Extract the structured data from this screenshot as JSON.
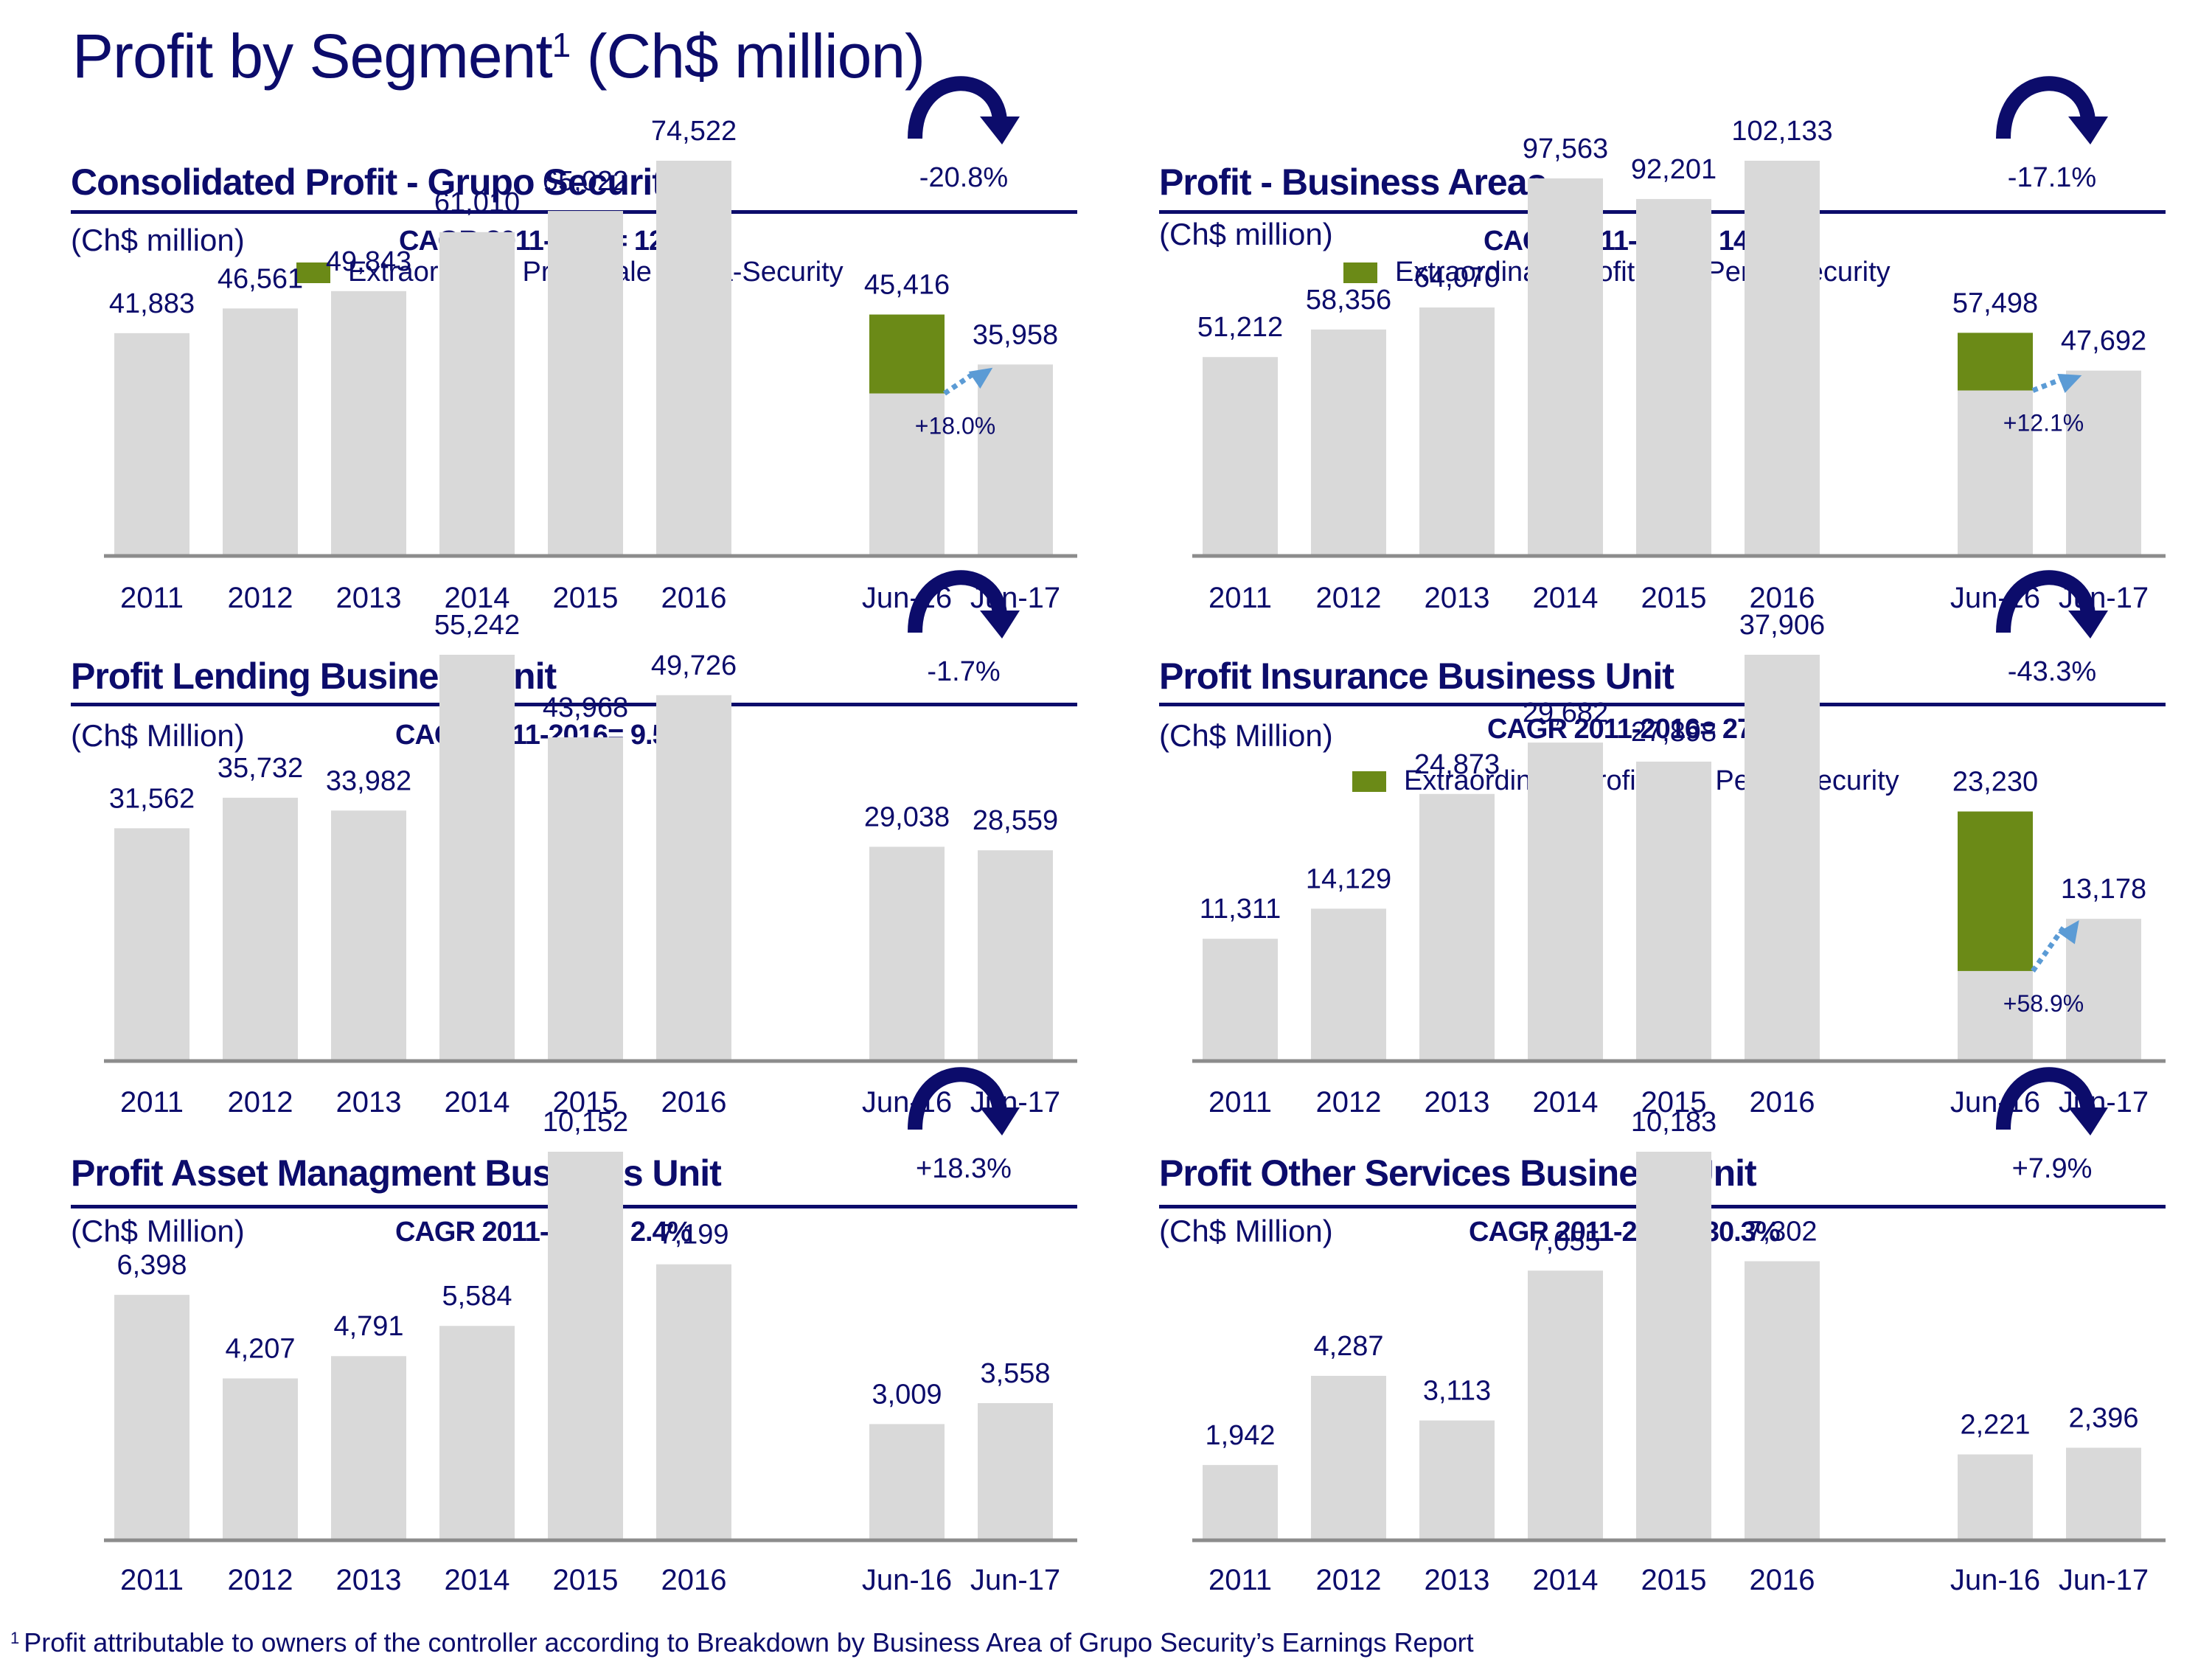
{
  "title": {
    "main": "Profit by Segment",
    "superscript": "1",
    "suffix": " (Ch$ million)"
  },
  "footnote": {
    "marker": "1",
    "text": "Profit attributable to owners of the controller according to Breakdown by Business Area of Grupo Security’s Earnings Report"
  },
  "colors": {
    "text": "#0c0c6b",
    "bar": "#d9d9d9",
    "extraordinary": "#6b8a17",
    "axis": "#8c8c8c",
    "growth_arrow": "#5b9bd5",
    "change_arrow": "#0c0c6b"
  },
  "legend_label": "Extraordinary Profit Sale Penta-Security",
  "chart_data": [
    {
      "id": "consolidated",
      "type": "bar",
      "title": "Consolidated Profit - Grupo Security",
      "unit": "(Ch$ million)",
      "cagr": "CAGR 2011-2016= 12.2%",
      "has_legend": true,
      "categories": [
        "2011",
        "2012",
        "2013",
        "2014",
        "2015",
        "2016",
        "Jun-16",
        "Jun-17"
      ],
      "values": [
        41883,
        46561,
        49843,
        61010,
        65022,
        74522,
        45416,
        35958
      ],
      "labels": [
        "41,883",
        "46,561",
        "49,843",
        "61,010",
        "65,022",
        "74,522",
        "45,416",
        "35,958"
      ],
      "extraordinary": {
        "category": "Jun-16",
        "base_value": 30480
      },
      "period_change": "-20.8%",
      "underlying_change": "+18.0%",
      "ylim": [
        0,
        80000
      ]
    },
    {
      "id": "business-areas",
      "type": "bar",
      "title": "Profit - Business Areas",
      "unit": "(Ch$ million)",
      "cagr": "CAGR 2011-2016= 14.8%",
      "has_legend": true,
      "categories": [
        "2011",
        "2012",
        "2013",
        "2014",
        "2015",
        "2016",
        "Jun-16",
        "Jun-17"
      ],
      "values": [
        51212,
        58356,
        64070,
        97563,
        92201,
        102133,
        57498,
        47692
      ],
      "labels": [
        "51,212",
        "58,356",
        "64,070",
        "97,563",
        "92,201",
        "102,133",
        "57,498",
        "47,692"
      ],
      "extraordinary": {
        "category": "Jun-16",
        "base_value": 42540
      },
      "period_change": "-17.1%",
      "underlying_change": "+12.1%",
      "ylim": [
        0,
        110000
      ]
    },
    {
      "id": "lending",
      "type": "bar",
      "title": "Profit Lending Business Unit",
      "unit": "(Ch$ Million)",
      "cagr": "CAGR 2011-2016= 9.5%",
      "has_legend": false,
      "categories": [
        "2011",
        "2012",
        "2013",
        "2014",
        "2015",
        "2016",
        "Jun-16",
        "Jun-17"
      ],
      "values": [
        31562,
        35732,
        33982,
        55242,
        43968,
        49726,
        29038,
        28559
      ],
      "labels": [
        "31,562",
        "35,732",
        "33,982",
        "55,242",
        "43,968",
        "49,726",
        "29,038",
        "28,559"
      ],
      "extraordinary": null,
      "period_change": "-1.7%",
      "underlying_change": null,
      "ylim": [
        0,
        80000
      ]
    },
    {
      "id": "insurance",
      "type": "bar",
      "title": "Profit Insurance Business Unit",
      "unit": "(Ch$ Million)",
      "cagr": "CAGR 2011-2016= 27.4%",
      "has_legend": true,
      "categories": [
        "2011",
        "2012",
        "2013",
        "2014",
        "2015",
        "2016",
        "Jun-16",
        "Jun-17"
      ],
      "values": [
        11311,
        14129,
        24873,
        29682,
        27898,
        37906,
        23230,
        13178
      ],
      "labels": [
        "11,311",
        "14,129",
        "24,873",
        "29,682",
        "27,898",
        "37,906",
        "23,230",
        "13,178"
      ],
      "extraordinary": {
        "category": "Jun-16",
        "base_value": 8290
      },
      "period_change": "-43.3%",
      "underlying_change": "+58.9%",
      "ylim": [
        0,
        54000
      ]
    },
    {
      "id": "asset-management",
      "type": "bar",
      "title": "Profit Asset Managment Business Unit",
      "unit": "(Ch$ Million)",
      "cagr": "CAGR 2011-2016= 2.4%",
      "has_legend": false,
      "categories": [
        "2011",
        "2012",
        "2013",
        "2014",
        "2015",
        "2016",
        "Jun-16",
        "Jun-17"
      ],
      "values": [
        6398,
        4207,
        4791,
        5584,
        10152,
        7199,
        3009,
        3558
      ],
      "labels": [
        "6,398",
        "4,207",
        "4,791",
        "5,584",
        "10,152",
        "7,199",
        "3,009",
        "3,558"
      ],
      "extraordinary": null,
      "period_change": "+18.3%",
      "underlying_change": null,
      "ylim": [
        0,
        16000
      ]
    },
    {
      "id": "other-services",
      "type": "bar",
      "title": "Profit Other Services Business Unit",
      "unit": "(Ch$ Million)",
      "cagr": "CAGR 2011-2016= 30.3%",
      "has_legend": false,
      "categories": [
        "2011",
        "2012",
        "2013",
        "2014",
        "2015",
        "2016",
        "Jun-16",
        "Jun-17"
      ],
      "values": [
        1942,
        4287,
        3113,
        7055,
        10183,
        7302,
        2221,
        2396
      ],
      "labels": [
        "1,942",
        "4,287",
        "3,113",
        "7,055",
        "10,183",
        "7,302",
        "2,221",
        "2,396"
      ],
      "extraordinary": null,
      "period_change": "+7.9%",
      "underlying_change": null,
      "ylim": [
        0,
        18000
      ]
    }
  ]
}
